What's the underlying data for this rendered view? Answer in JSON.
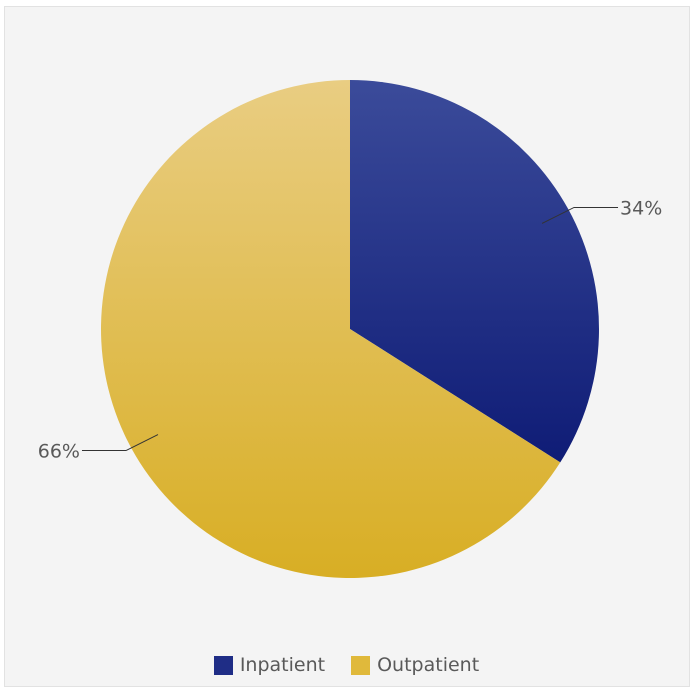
{
  "chart_data": {
    "type": "pie",
    "series": [
      {
        "name": "Inpatient",
        "value": 34,
        "label": "34%",
        "color": "#1f2d86"
      },
      {
        "name": "Outpatient",
        "value": 66,
        "label": "66%",
        "color": "#e0b93b"
      }
    ],
    "legend_position": "bottom",
    "start_angle_deg": 0,
    "direction": "clockwise"
  }
}
